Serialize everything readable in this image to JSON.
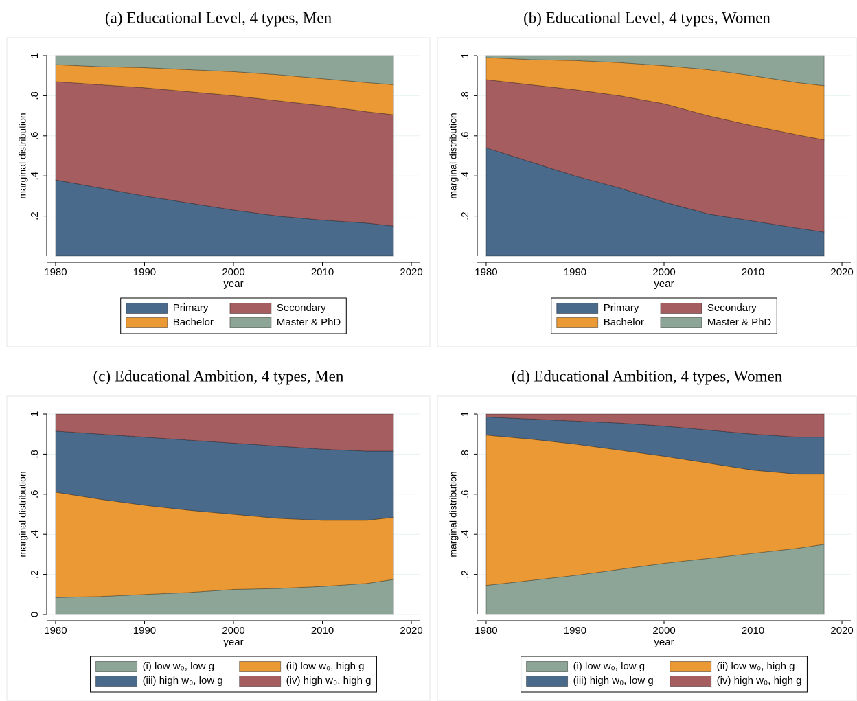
{
  "chart_data": [
    {
      "type": "area",
      "stacked": true,
      "grid": true,
      "title": "(a) Educational Level, 4 types, Men",
      "xlabel": "year",
      "ylabel": "marginal distribution",
      "x": [
        1980,
        1985,
        1990,
        1995,
        2000,
        2005,
        2010,
        2015,
        2018
      ],
      "xlim": [
        1979,
        2021
      ],
      "xticks": [
        1980,
        1990,
        2000,
        2010,
        2020
      ],
      "ylim": [
        0,
        1
      ],
      "yticks": [
        {
          "value": 0.2,
          "label": ".2"
        },
        {
          "value": 0.4,
          "label": ".4"
        },
        {
          "value": 0.6,
          "label": ".6"
        },
        {
          "value": 0.8,
          "label": ".8"
        },
        1
      ],
      "series": [
        {
          "name": "Primary",
          "color": "#496a8a",
          "values": [
            0.38,
            0.34,
            0.3,
            0.265,
            0.23,
            0.2,
            0.18,
            0.165,
            0.15
          ]
        },
        {
          "name": "Secondary",
          "color": "#a65d5f",
          "values": [
            0.49,
            0.515,
            0.54,
            0.555,
            0.57,
            0.575,
            0.57,
            0.555,
            0.555
          ]
        },
        {
          "name": "Bachelor",
          "color": "#eb9934",
          "values": [
            0.085,
            0.09,
            0.1,
            0.11,
            0.12,
            0.13,
            0.135,
            0.145,
            0.15
          ]
        },
        {
          "name": "Master & PhD",
          "color": "#8ca596",
          "values": [
            0.045,
            0.055,
            0.06,
            0.07,
            0.08,
            0.095,
            0.115,
            0.135,
            0.145
          ]
        }
      ]
    },
    {
      "type": "area",
      "stacked": true,
      "grid": true,
      "title": "(b) Educational Level, 4 types, Women",
      "xlabel": "year",
      "ylabel": "marginal distribution",
      "x": [
        1980,
        1985,
        1990,
        1995,
        2000,
        2005,
        2010,
        2015,
        2018
      ],
      "xlim": [
        1979,
        2021
      ],
      "xticks": [
        1980,
        1990,
        2000,
        2010,
        2020
      ],
      "ylim": [
        0,
        1
      ],
      "yticks": [
        {
          "value": 0.2,
          "label": ".2"
        },
        {
          "value": 0.4,
          "label": ".4"
        },
        {
          "value": 0.6,
          "label": ".6"
        },
        {
          "value": 0.8,
          "label": ".8"
        },
        1
      ],
      "series": [
        {
          "name": "Primary",
          "color": "#496a8a",
          "values": [
            0.54,
            0.47,
            0.4,
            0.34,
            0.27,
            0.21,
            0.175,
            0.14,
            0.12
          ]
        },
        {
          "name": "Secondary",
          "color": "#a65d5f",
          "values": [
            0.34,
            0.385,
            0.43,
            0.46,
            0.49,
            0.49,
            0.475,
            0.465,
            0.46
          ]
        },
        {
          "name": "Bachelor",
          "color": "#eb9934",
          "values": [
            0.11,
            0.125,
            0.145,
            0.165,
            0.19,
            0.23,
            0.25,
            0.26,
            0.27
          ]
        },
        {
          "name": "Master & PhD",
          "color": "#8ca596",
          "values": [
            0.01,
            0.02,
            0.025,
            0.035,
            0.05,
            0.07,
            0.1,
            0.135,
            0.15
          ]
        }
      ]
    },
    {
      "type": "area",
      "stacked": true,
      "grid": true,
      "title": "(c) Educational Ambition, 4 types, Men",
      "xlabel": "year",
      "ylabel": "marginal distribution",
      "x": [
        1980,
        1985,
        1990,
        1995,
        2000,
        2005,
        2010,
        2015,
        2018
      ],
      "xlim": [
        1979,
        2021
      ],
      "xticks": [
        1980,
        1990,
        2000,
        2010,
        2020
      ],
      "ylim": [
        0,
        1
      ],
      "yticks": [
        0,
        {
          "value": 0.2,
          "label": ".2"
        },
        {
          "value": 0.4,
          "label": ".4"
        },
        {
          "value": 0.6,
          "label": ".6"
        },
        {
          "value": 0.8,
          "label": ".8"
        },
        1
      ],
      "series": [
        {
          "name": "(i) low w₀, low g",
          "color": "#8ca596",
          "values": [
            0.085,
            0.09,
            0.1,
            0.11,
            0.125,
            0.13,
            0.14,
            0.155,
            0.175
          ]
        },
        {
          "name": "(ii) low w₀, high g",
          "color": "#eb9934",
          "values": [
            0.525,
            0.485,
            0.445,
            0.41,
            0.375,
            0.35,
            0.33,
            0.315,
            0.31
          ]
        },
        {
          "name": "(iii) high w₀, low g",
          "color": "#496a8a",
          "values": [
            0.305,
            0.325,
            0.34,
            0.35,
            0.355,
            0.36,
            0.355,
            0.345,
            0.33
          ]
        },
        {
          "name": "(iv) high w₀, high g",
          "color": "#a65d5f",
          "values": [
            0.085,
            0.1,
            0.115,
            0.13,
            0.145,
            0.16,
            0.175,
            0.185,
            0.185
          ]
        }
      ]
    },
    {
      "type": "area",
      "stacked": true,
      "grid": true,
      "title": "(d) Educational Ambition, 4 types, Women",
      "xlabel": "year",
      "ylabel": "marginal distribution",
      "x": [
        1980,
        1985,
        1990,
        1995,
        2000,
        2005,
        2010,
        2015,
        2018
      ],
      "xlim": [
        1979,
        2021
      ],
      "xticks": [
        1980,
        1990,
        2000,
        2010,
        2020
      ],
      "ylim": [
        0,
        1
      ],
      "yticks": [
        {
          "value": 0.2,
          "label": ".2"
        },
        {
          "value": 0.4,
          "label": ".4"
        },
        {
          "value": 0.6,
          "label": ".6"
        },
        {
          "value": 0.8,
          "label": ".8"
        },
        1
      ],
      "series": [
        {
          "name": "(i) low w₀, low g",
          "color": "#8ca596",
          "values": [
            0.145,
            0.17,
            0.195,
            0.225,
            0.255,
            0.28,
            0.305,
            0.33,
            0.35
          ]
        },
        {
          "name": "(ii) low w₀, high g",
          "color": "#eb9934",
          "values": [
            0.75,
            0.705,
            0.655,
            0.595,
            0.535,
            0.475,
            0.415,
            0.37,
            0.35
          ]
        },
        {
          "name": "(iii) high w₀, low g",
          "color": "#496a8a",
          "values": [
            0.09,
            0.1,
            0.115,
            0.135,
            0.15,
            0.165,
            0.18,
            0.185,
            0.185
          ]
        },
        {
          "name": "(iv) high w₀, high g",
          "color": "#a65d5f",
          "values": [
            0.015,
            0.025,
            0.035,
            0.045,
            0.06,
            0.08,
            0.1,
            0.115,
            0.115
          ]
        }
      ]
    }
  ]
}
